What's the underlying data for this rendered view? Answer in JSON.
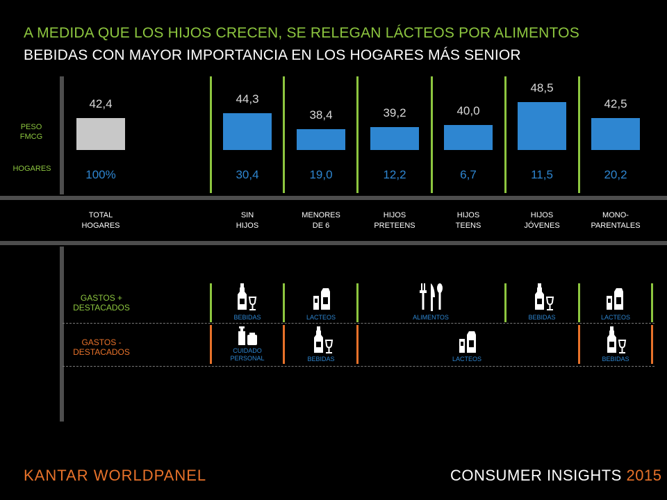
{
  "title_line1": "A MEDIDA QUE LOS HIJOS CRECEN, SE RELEGAN LÁCTEOS POR ALIMENTOS",
  "title_line2": "BEBIDAS CON MAYOR IMPORTANCIA EN LOS HOGARES MÁS SENIOR",
  "row_labels": {
    "peso_fmcg": "PESO FMCG",
    "hogares": "HOGARES",
    "gastos_plus": "GASTOS + DESTACADOS",
    "gastos_minus": "GASTOS - DESTACADOS"
  },
  "colors": {
    "accent_green": "#8dc63f",
    "accent_orange": "#e8722a",
    "bar_blue": "#2e86d1",
    "bar_total": "#c8c8c8"
  },
  "chart_data": {
    "type": "bar",
    "categories": [
      "TOTAL HOGARES",
      "SIN HIJOS",
      "MENORES DE 6",
      "HIJOS PRETEENS",
      "HIJOS TEENS",
      "HIJOS JÓVENES",
      "MONO-PARENTALES"
    ],
    "category_lines": [
      [
        "TOTAL",
        "HOGARES"
      ],
      [
        "SIN",
        "HIJOS"
      ],
      [
        "MENORES",
        "DE 6"
      ],
      [
        "HIJOS",
        "PRETEENS"
      ],
      [
        "HIJOS",
        "TEENS"
      ],
      [
        "HIJOS",
        "JÓVENES"
      ],
      [
        "MONO-",
        "PARENTALES"
      ]
    ],
    "series": [
      {
        "values": [
          42.4,
          44.3,
          38.4,
          39.2,
          40.0,
          48.5,
          42.5
        ]
      }
    ],
    "value_labels": [
      "42,4",
      "44,3",
      "38,4",
      "39,2",
      "40,0",
      "48,5",
      "42,5"
    ],
    "hogares_labels": [
      "100%",
      "30,4",
      "19,0",
      "12,2",
      "6,7",
      "11,5",
      "20,2"
    ]
  },
  "gastos_plus": [
    {
      "label": "BEBIDAS",
      "icon": "bottle-glass-icon"
    },
    {
      "label": "LACTEOS",
      "icon": "milk-carton-icon"
    },
    {
      "label": "ALIMENTOS",
      "icon": "cutlery-icon"
    },
    {
      "label": "BEBIDAS",
      "icon": "bottle-glass-icon"
    },
    {
      "label": "LACTEOS",
      "icon": "milk-carton-icon"
    }
  ],
  "gastos_minus": [
    {
      "label": "CUIDADO PERSONAL",
      "icon": "personal-care-icon"
    },
    {
      "label": "BEBIDAS",
      "icon": "bottle-glass-icon"
    },
    {
      "label": "LACTEOS",
      "icon": "milk-carton-icon"
    },
    {
      "label": "BEBIDAS",
      "icon": "bottle-glass-icon"
    }
  ],
  "footer": {
    "brand_left": "KANTAR WORLDPANEL",
    "brand_right": "CONSUMER INSIGHTS",
    "year": "2015"
  }
}
